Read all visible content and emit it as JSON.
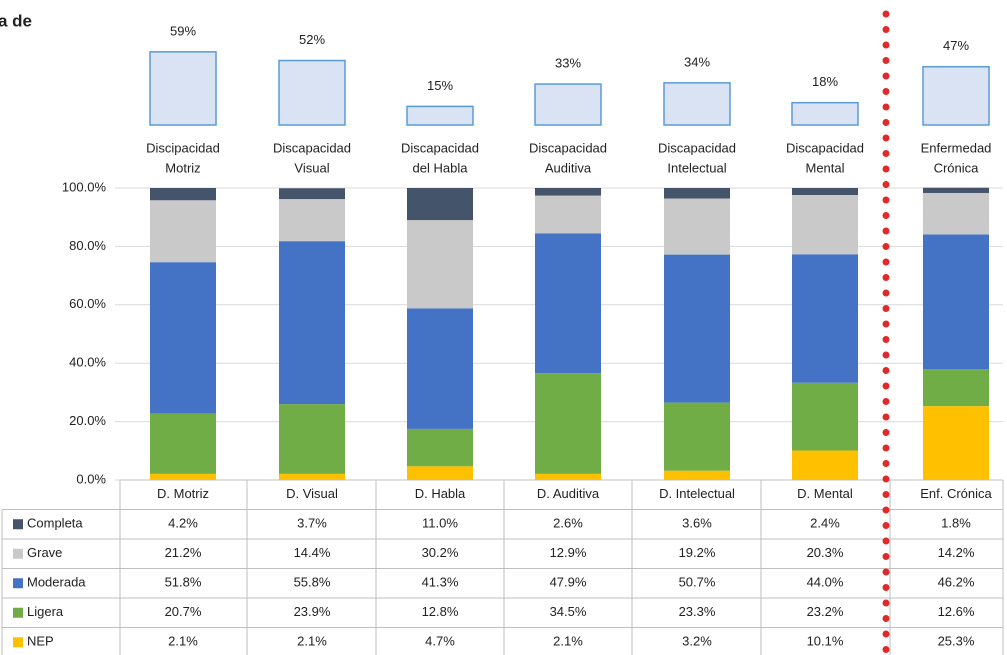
{
  "title": "a de",
  "chart_data": [
    {
      "type": "bar",
      "categories": [
        [
          "Discipacidad",
          "Motriz"
        ],
        [
          "Discapacidad",
          "Visual"
        ],
        [
          "Discapacidad",
          "del Habla"
        ],
        [
          "Discapacidad",
          "Auditiva"
        ],
        [
          "Discapacidad",
          "Intelectual"
        ],
        [
          "Discapacidad",
          "Mental"
        ],
        [
          "Enfermedad",
          "Crónica"
        ]
      ],
      "values": [
        59,
        52,
        15,
        33,
        34,
        18,
        47
      ],
      "value_labels": [
        "59%",
        "52%",
        "15%",
        "33%",
        "34%",
        "18%",
        "47%"
      ],
      "color": "#dae3f3",
      "edgecolor": "#5b9bd5"
    },
    {
      "type": "stacked_bar",
      "categories": [
        "D. Motriz",
        "D. Visual",
        "D. Habla",
        "D. Auditiva",
        "D. Intelectual",
        "D. Mental",
        "Enf. Crónica"
      ],
      "series": [
        {
          "name": "Completa",
          "color": "#44546a",
          "values": [
            4.2,
            3.7,
            11.0,
            2.6,
            3.6,
            2.4,
            1.8
          ],
          "value_labels": [
            "4.2%",
            "3.7%",
            "11.0%",
            "2.6%",
            "3.6%",
            "2.4%",
            "1.8%"
          ]
        },
        {
          "name": "Grave",
          "color": "#c9c9c9",
          "values": [
            21.2,
            14.4,
            30.2,
            12.9,
            19.2,
            20.3,
            14.2
          ],
          "value_labels": [
            "21.2%",
            "14.4%",
            "30.2%",
            "12.9%",
            "19.2%",
            "20.3%",
            "14.2%"
          ]
        },
        {
          "name": "Moderada",
          "color": "#4472c4",
          "values": [
            51.8,
            55.8,
            41.3,
            47.9,
            50.7,
            44.0,
            46.2
          ],
          "value_labels": [
            "51.8%",
            "55.8%",
            "41.3%",
            "47.9%",
            "50.7%",
            "44.0%",
            "46.2%"
          ]
        },
        {
          "name": "Ligera",
          "color": "#70ad47",
          "values": [
            20.7,
            23.9,
            12.8,
            34.5,
            23.3,
            23.2,
            12.6
          ],
          "value_labels": [
            "20.7%",
            "23.9%",
            "12.8%",
            "34.5%",
            "23.3%",
            "23.2%",
            "12.6%"
          ]
        },
        {
          "name": "NEP",
          "color": "#ffc000",
          "values": [
            2.1,
            2.1,
            4.7,
            2.1,
            3.2,
            10.1,
            25.3
          ],
          "value_labels": [
            "2.1%",
            "2.1%",
            "4.7%",
            "2.1%",
            "3.2%",
            "10.1%",
            "25.3%"
          ]
        }
      ],
      "ylim": [
        0,
        100
      ],
      "yticks": [
        {
          "value": 0,
          "label": "0.0%"
        },
        {
          "value": 20,
          "label": "20.0%"
        },
        {
          "value": 40,
          "label": "40.0%"
        },
        {
          "value": 60,
          "label": "60.0%"
        },
        {
          "value": 80,
          "label": "80.0%"
        },
        {
          "value": 100,
          "label": "100.0%"
        }
      ],
      "grid": true
    }
  ]
}
